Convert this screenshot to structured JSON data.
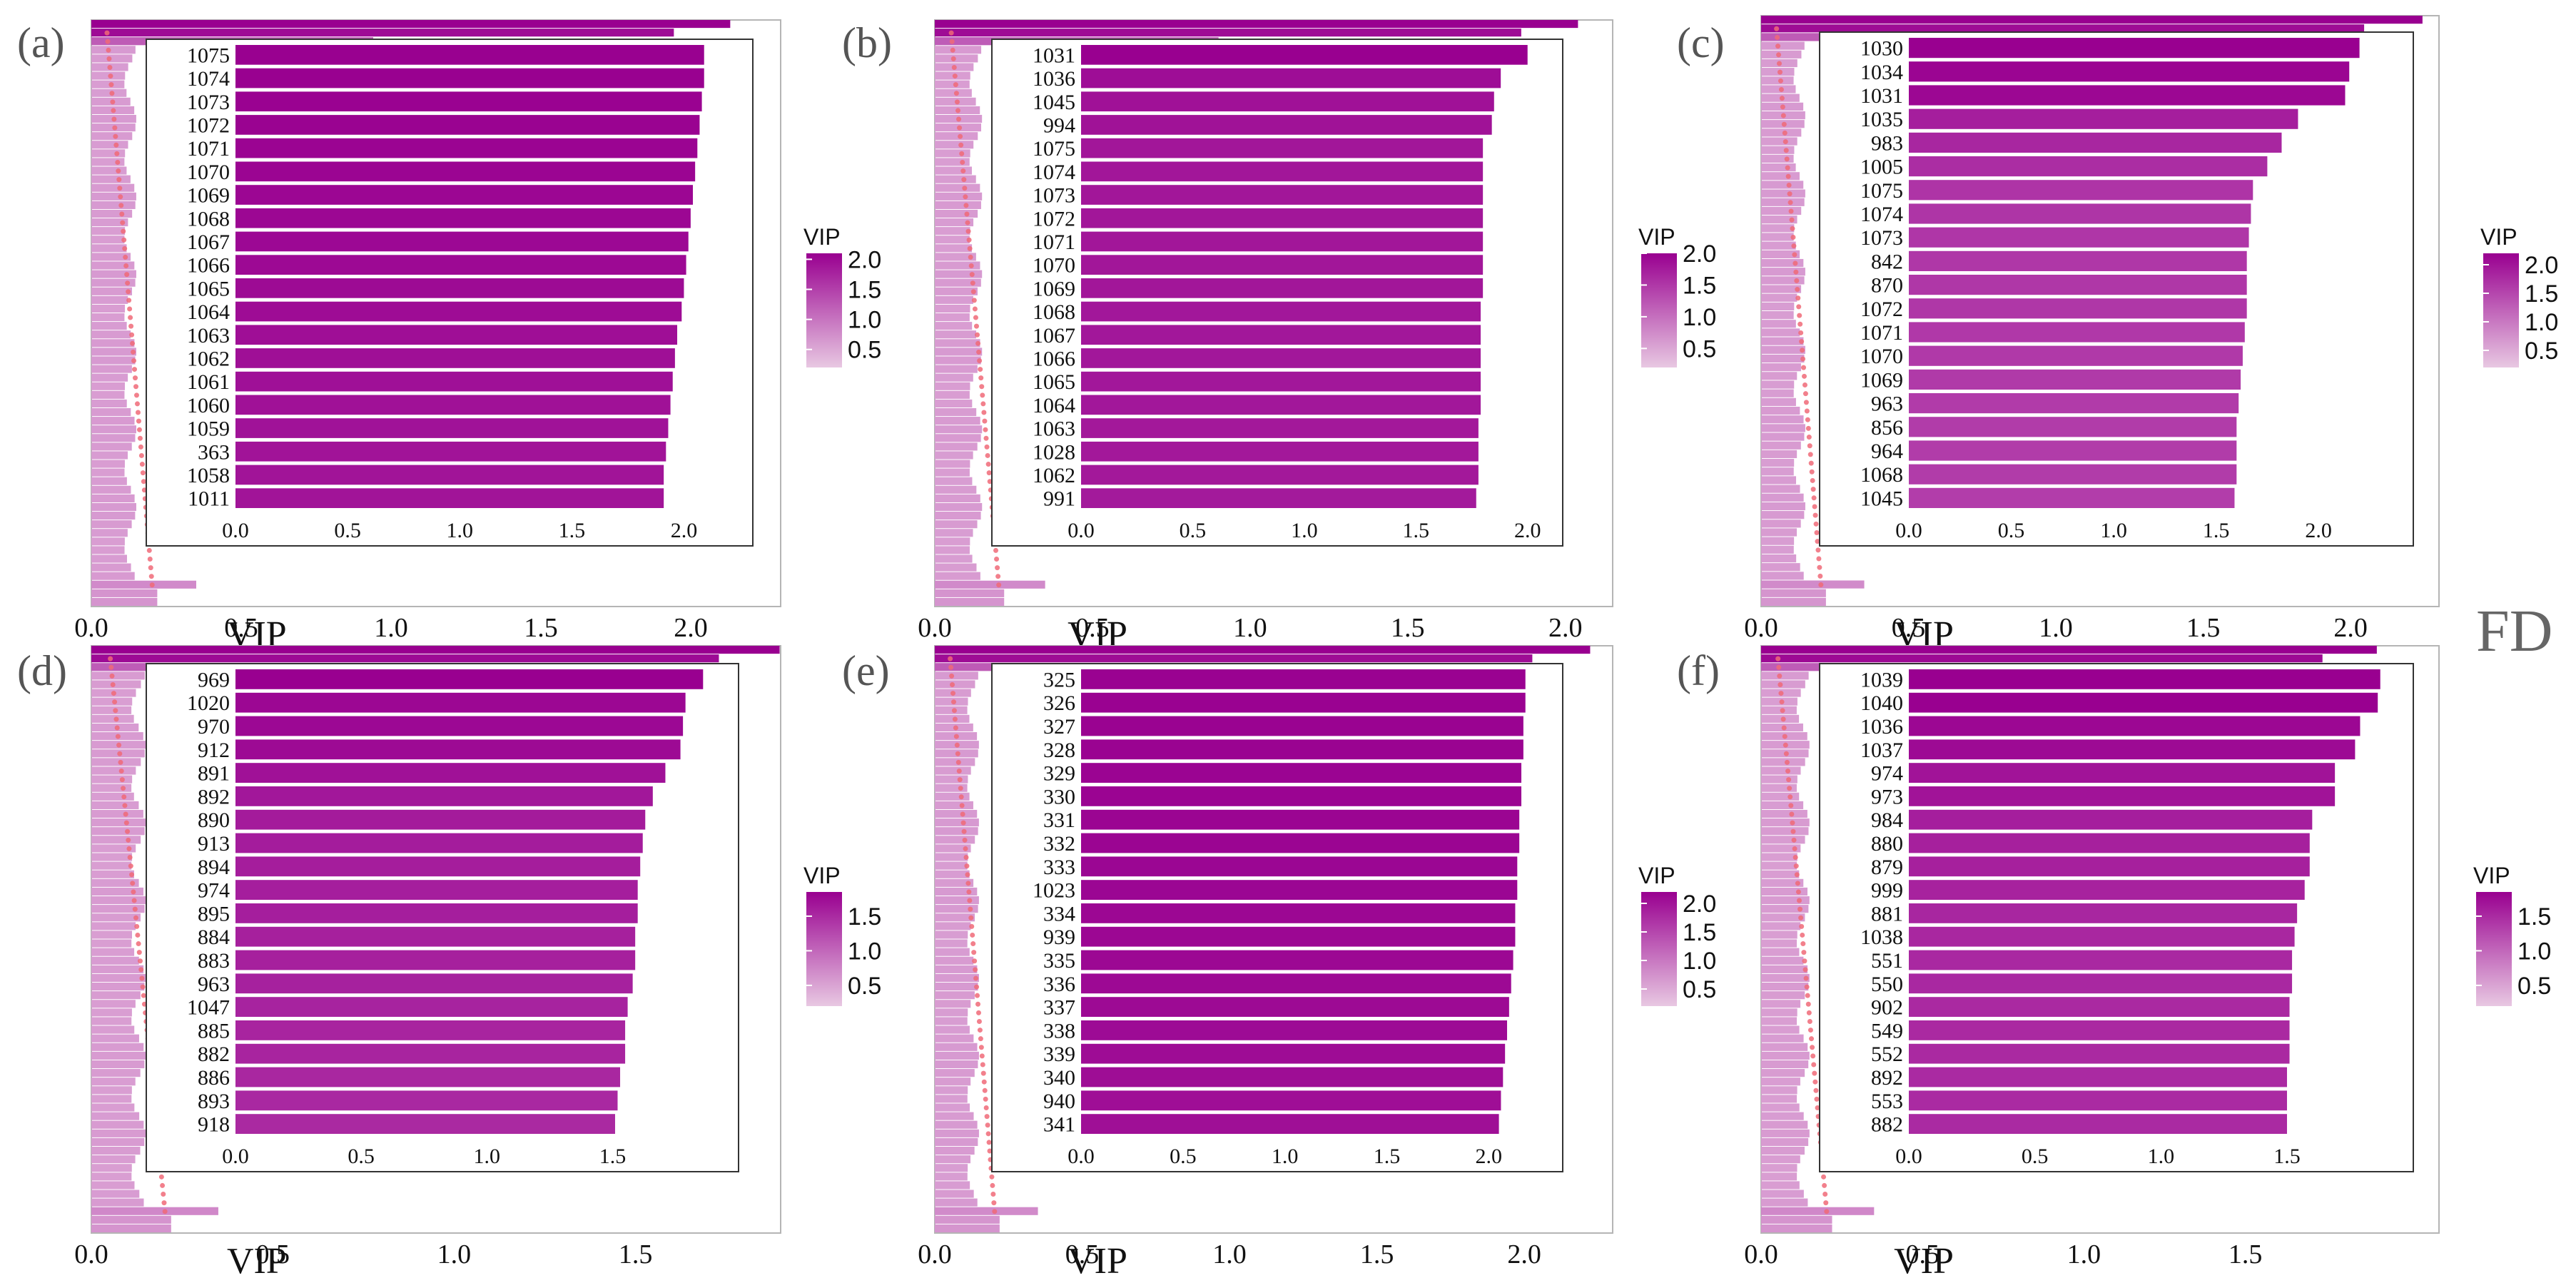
{
  "figure_side_label": "FD",
  "chart_data": [
    {
      "panel": "(a)",
      "type": "bar",
      "orientation": "horizontal",
      "xlabel": "VIP",
      "inset_xticks": [
        "0.0",
        "0.5",
        "1.0",
        "1.5",
        "2.0"
      ],
      "outer_xticks": [
        "0.0",
        "0.5",
        "1.0",
        "1.5",
        "2.0"
      ],
      "inset_xlim": [
        0,
        2.25
      ],
      "outer_xlim": [
        0,
        2.3
      ],
      "legend": {
        "title": "VIP",
        "ticks": [
          "2.0",
          "1.5",
          "1.0",
          "0.5"
        ],
        "range": [
          0.2,
          2.1
        ]
      },
      "categories": [
        "1075",
        "1074",
        "1073",
        "1072",
        "1071",
        "1070",
        "1069",
        "1068",
        "1067",
        "1066",
        "1065",
        "1064",
        "1063",
        "1062",
        "1061",
        "1060",
        "1059",
        "363",
        "1058",
        "1011"
      ],
      "values": [
        2.09,
        2.09,
        2.08,
        2.07,
        2.06,
        2.05,
        2.04,
        2.03,
        2.02,
        2.01,
        2.0,
        1.99,
        1.97,
        1.96,
        1.95,
        1.94,
        1.93,
        1.92,
        1.91,
        1.91
      ]
    },
    {
      "panel": "(b)",
      "type": "bar",
      "orientation": "horizontal",
      "xlabel": "VIP",
      "inset_xticks": [
        "0.0",
        "0.5",
        "1.0",
        "1.5",
        "2.0"
      ],
      "outer_xticks": [
        "0.0",
        "0.5",
        "1.0",
        "1.5",
        "2.0"
      ],
      "inset_xlim": [
        0,
        2.1
      ],
      "outer_xlim": [
        0,
        2.15
      ],
      "legend": {
        "title": "VIP",
        "ticks": [
          "2.0",
          "1.5",
          "1.0",
          "0.5"
        ],
        "range": [
          0.2,
          2.0
        ]
      },
      "categories": [
        "1031",
        "1036",
        "1045",
        "994",
        "1075",
        "1074",
        "1073",
        "1072",
        "1071",
        "1070",
        "1069",
        "1068",
        "1067",
        "1066",
        "1065",
        "1064",
        "1063",
        "1028",
        "1062",
        "991"
      ],
      "values": [
        2.0,
        1.88,
        1.85,
        1.84,
        1.8,
        1.8,
        1.8,
        1.8,
        1.8,
        1.8,
        1.8,
        1.79,
        1.79,
        1.79,
        1.79,
        1.79,
        1.78,
        1.78,
        1.78,
        1.77
      ]
    },
    {
      "panel": "(c)",
      "type": "bar",
      "orientation": "horizontal",
      "xlabel": "VIP",
      "inset_xticks": [
        "0.0",
        "0.5",
        "1.0",
        "1.5",
        "2.0"
      ],
      "outer_xticks": [
        "0.0",
        "0.5",
        "1.0",
        "1.5",
        "2.0"
      ],
      "inset_xlim": [
        0,
        2.4
      ],
      "outer_xlim": [
        0,
        2.3
      ],
      "legend": {
        "title": "VIP",
        "ticks": [
          "2.0",
          "1.5",
          "1.0",
          "0.5"
        ],
        "range": [
          0.2,
          2.2
        ]
      },
      "categories": [
        "1030",
        "1034",
        "1031",
        "1035",
        "983",
        "1005",
        "1075",
        "1074",
        "1073",
        "842",
        "870",
        "1072",
        "1071",
        "1070",
        "1069",
        "963",
        "856",
        "964",
        "1068",
        "1045"
      ],
      "values": [
        2.2,
        2.15,
        2.13,
        1.9,
        1.82,
        1.75,
        1.68,
        1.67,
        1.66,
        1.65,
        1.65,
        1.65,
        1.64,
        1.63,
        1.62,
        1.61,
        1.6,
        1.6,
        1.6,
        1.59
      ]
    },
    {
      "panel": "(d)",
      "type": "bar",
      "orientation": "horizontal",
      "xlabel": "VIP",
      "inset_xticks": [
        "0.0",
        "0.5",
        "1.0",
        "1.5"
      ],
      "outer_xticks": [
        "0.0",
        "0.5",
        "1.0",
        "1.5"
      ],
      "inset_xlim": [
        0,
        1.95
      ],
      "outer_xlim": [
        0,
        1.9
      ],
      "legend": {
        "title": "VIP",
        "ticks": [
          "1.5",
          "1.0",
          "0.5"
        ],
        "range": [
          0.2,
          1.85
        ]
      },
      "categories": [
        "969",
        "1020",
        "970",
        "912",
        "891",
        "892",
        "890",
        "913",
        "894",
        "974",
        "895",
        "884",
        "883",
        "963",
        "1047",
        "885",
        "882",
        "886",
        "893",
        "918"
      ],
      "values": [
        1.86,
        1.79,
        1.78,
        1.77,
        1.71,
        1.66,
        1.63,
        1.62,
        1.61,
        1.6,
        1.6,
        1.59,
        1.59,
        1.58,
        1.56,
        1.55,
        1.55,
        1.53,
        1.52,
        1.51
      ]
    },
    {
      "panel": "(e)",
      "type": "bar",
      "orientation": "horizontal",
      "xlabel": "VIP",
      "inset_xticks": [
        "0.0",
        "0.5",
        "1.0",
        "1.5",
        "2.0"
      ],
      "outer_xticks": [
        "0.0",
        "0.5",
        "1.0",
        "1.5",
        "2.0"
      ],
      "inset_xlim": [
        0,
        2.3
      ],
      "outer_xlim": [
        0,
        2.3
      ],
      "legend": {
        "title": "VIP",
        "ticks": [
          "2.0",
          "1.5",
          "1.0",
          "0.5"
        ],
        "range": [
          0.2,
          2.2
        ]
      },
      "categories": [
        "325",
        "326",
        "327",
        "328",
        "329",
        "330",
        "331",
        "332",
        "333",
        "1023",
        "334",
        "939",
        "335",
        "336",
        "337",
        "338",
        "339",
        "340",
        "940",
        "341"
      ],
      "values": [
        2.18,
        2.18,
        2.17,
        2.17,
        2.16,
        2.16,
        2.15,
        2.15,
        2.14,
        2.14,
        2.13,
        2.13,
        2.12,
        2.11,
        2.1,
        2.09,
        2.08,
        2.07,
        2.06,
        2.05
      ]
    },
    {
      "panel": "(f)",
      "type": "bar",
      "orientation": "horizontal",
      "xlabel": "VIP",
      "inset_xticks": [
        "0.0",
        "0.5",
        "1.0",
        "1.5"
      ],
      "outer_xticks": [
        "0.0",
        "0.5",
        "1.0",
        "1.5"
      ],
      "inset_xlim": [
        0,
        1.95
      ],
      "outer_xlim": [
        0,
        2.1
      ],
      "legend": {
        "title": "VIP",
        "ticks": [
          "1.5",
          "1.0",
          "0.5"
        ],
        "range": [
          0.2,
          1.85
        ]
      },
      "categories": [
        "1039",
        "1040",
        "1036",
        "1037",
        "974",
        "973",
        "984",
        "880",
        "879",
        "999",
        "881",
        "1038",
        "551",
        "550",
        "902",
        "549",
        "552",
        "892",
        "553",
        "882"
      ],
      "values": [
        1.87,
        1.86,
        1.79,
        1.77,
        1.69,
        1.69,
        1.6,
        1.59,
        1.59,
        1.57,
        1.54,
        1.53,
        1.52,
        1.52,
        1.51,
        1.51,
        1.51,
        1.5,
        1.5,
        1.5
      ]
    }
  ]
}
